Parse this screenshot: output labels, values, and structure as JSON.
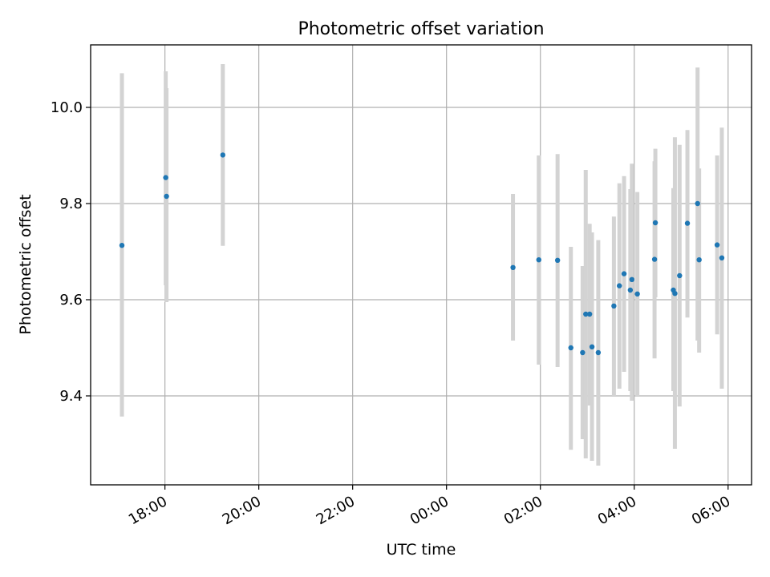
{
  "chart_data": {
    "type": "scatter",
    "title": "Photometric offset variation",
    "xlabel": "UTC time",
    "ylabel": "Photometric offset",
    "x_start": "17:00",
    "xlim": [
      "16:25",
      "06:30"
    ],
    "ylim": [
      9.215,
      10.13
    ],
    "x_ticks": [
      "18:00",
      "20:00",
      "22:00",
      "00:00",
      "02:00",
      "04:00",
      "06:00"
    ],
    "y_ticks": [
      9.4,
      9.6,
      9.8,
      10.0
    ],
    "grid": true,
    "marker_color": "#1f77b4",
    "errorbar_color": "#d3d3d3",
    "points": [
      {
        "x": "17:05",
        "y": 9.713,
        "ylow": 9.357,
        "yhigh": 10.071
      },
      {
        "x": "18:01",
        "y": 9.854,
        "ylow": 9.63,
        "yhigh": 10.075
      },
      {
        "x": "18:02",
        "y": 9.815,
        "ylow": 9.595,
        "yhigh": 10.04
      },
      {
        "x": "19:14",
        "y": 9.901,
        "ylow": 9.712,
        "yhigh": 10.09
      },
      {
        "x": "01:25",
        "y": 9.667,
        "ylow": 9.515,
        "yhigh": 9.82
      },
      {
        "x": "01:58",
        "y": 9.683,
        "ylow": 9.465,
        "yhigh": 9.9
      },
      {
        "x": "02:22",
        "y": 9.682,
        "ylow": 9.46,
        "yhigh": 9.903
      },
      {
        "x": "02:39",
        "y": 9.5,
        "ylow": 9.288,
        "yhigh": 9.71
      },
      {
        "x": "02:54",
        "y": 9.49,
        "ylow": 9.31,
        "yhigh": 9.67
      },
      {
        "x": "02:58",
        "y": 9.57,
        "ylow": 9.27,
        "yhigh": 9.87
      },
      {
        "x": "03:03",
        "y": 9.57,
        "ylow": 9.38,
        "yhigh": 9.758
      },
      {
        "x": "03:06",
        "y": 9.502,
        "ylow": 9.265,
        "yhigh": 9.74
      },
      {
        "x": "03:14",
        "y": 9.49,
        "ylow": 9.255,
        "yhigh": 9.724
      },
      {
        "x": "03:34",
        "y": 9.587,
        "ylow": 9.4,
        "yhigh": 9.773
      },
      {
        "x": "03:41",
        "y": 9.629,
        "ylow": 9.415,
        "yhigh": 9.842
      },
      {
        "x": "03:47",
        "y": 9.654,
        "ylow": 9.45,
        "yhigh": 9.857
      },
      {
        "x": "03:55",
        "y": 9.62,
        "ylow": 9.41,
        "yhigh": 9.83
      },
      {
        "x": "03:57",
        "y": 9.642,
        "ylow": 9.39,
        "yhigh": 9.883
      },
      {
        "x": "04:04",
        "y": 9.612,
        "ylow": 9.4,
        "yhigh": 9.824
      },
      {
        "x": "04:26",
        "y": 9.684,
        "ylow": 9.478,
        "yhigh": 9.888
      },
      {
        "x": "04:27",
        "y": 9.76,
        "ylow": 9.605,
        "yhigh": 9.914
      },
      {
        "x": "04:50",
        "y": 9.62,
        "ylow": 9.41,
        "yhigh": 9.832
      },
      {
        "x": "04:52",
        "y": 9.613,
        "ylow": 9.29,
        "yhigh": 9.938
      },
      {
        "x": "04:58",
        "y": 9.65,
        "ylow": 9.378,
        "yhigh": 9.922
      },
      {
        "x": "05:08",
        "y": 9.759,
        "ylow": 9.563,
        "yhigh": 9.953
      },
      {
        "x": "05:21",
        "y": 9.8,
        "ylow": 9.515,
        "yhigh": 10.083
      },
      {
        "x": "05:23",
        "y": 9.683,
        "ylow": 9.49,
        "yhigh": 9.873
      },
      {
        "x": "05:46",
        "y": 9.714,
        "ylow": 9.528,
        "yhigh": 9.9
      },
      {
        "x": "05:52",
        "y": 9.687,
        "ylow": 9.415,
        "yhigh": 9.958
      }
    ]
  }
}
